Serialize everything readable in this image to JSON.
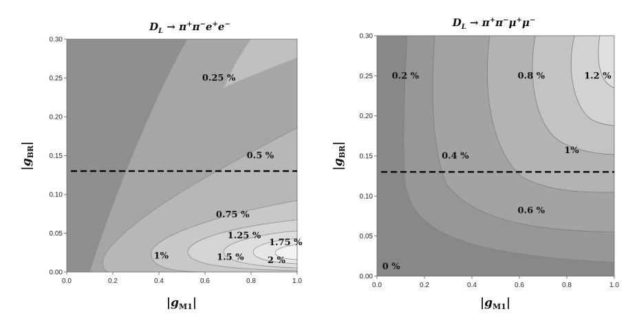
{
  "chart_data": [
    {
      "type": "contour",
      "title": "D_L → π⁺π⁻ e⁺ e⁻",
      "xlabel": "|g_M1|",
      "ylabel": "|g_BR|",
      "xlim": [
        0,
        1.0
      ],
      "ylim": [
        0,
        0.3
      ],
      "xticks": [
        "0.0",
        "0.2",
        "0.4",
        "0.6",
        "0.8",
        "1.0"
      ],
      "yticks": [
        "0.00",
        "0.05",
        "0.10",
        "0.15",
        "0.20",
        "0.25",
        "0.30"
      ],
      "dashed_line_y": 0.13,
      "contour_labels": [
        {
          "text": "0.25 %",
          "x": 0.66,
          "y": 0.25
        },
        {
          "text": "0.5 %",
          "x": 0.84,
          "y": 0.15
        },
        {
          "text": "0.75 %",
          "x": 0.72,
          "y": 0.074
        },
        {
          "text": "1.25 %",
          "x": 0.77,
          "y": 0.047
        },
        {
          "text": "1.75 %",
          "x": 0.95,
          "y": 0.038
        },
        {
          "text": "1%",
          "x": 0.41,
          "y": 0.021
        },
        {
          "text": "1.5 %",
          "x": 0.71,
          "y": 0.019
        },
        {
          "text": "2 %",
          "x": 0.91,
          "y": 0.015
        }
      ]
    },
    {
      "type": "contour",
      "title": "D_L → π⁺π⁻ μ⁺ μ⁻",
      "xlabel": "|g_M1|",
      "ylabel": "|g_BR|",
      "xlim": [
        0,
        1.0
      ],
      "ylim": [
        0,
        0.3
      ],
      "xticks": [
        "0.0",
        "0.2",
        "0.4",
        "0.6",
        "0.8",
        "1.0"
      ],
      "yticks": [
        "0.00",
        "0.05",
        "0.10",
        "0.15",
        "0.20",
        "0.25",
        "0.30"
      ],
      "dashed_line_y": 0.13,
      "contour_labels": [
        {
          "text": "0.2 %",
          "x": 0.12,
          "y": 0.25
        },
        {
          "text": "0.8 %",
          "x": 0.65,
          "y": 0.25
        },
        {
          "text": "1.2 %",
          "x": 0.93,
          "y": 0.25
        },
        {
          "text": "0.4 %",
          "x": 0.33,
          "y": 0.15
        },
        {
          "text": "1%",
          "x": 0.82,
          "y": 0.157
        },
        {
          "text": "0.6 %",
          "x": 0.65,
          "y": 0.082
        },
        {
          "text": "0 %",
          "x": 0.06,
          "y": 0.012
        }
      ]
    }
  ]
}
